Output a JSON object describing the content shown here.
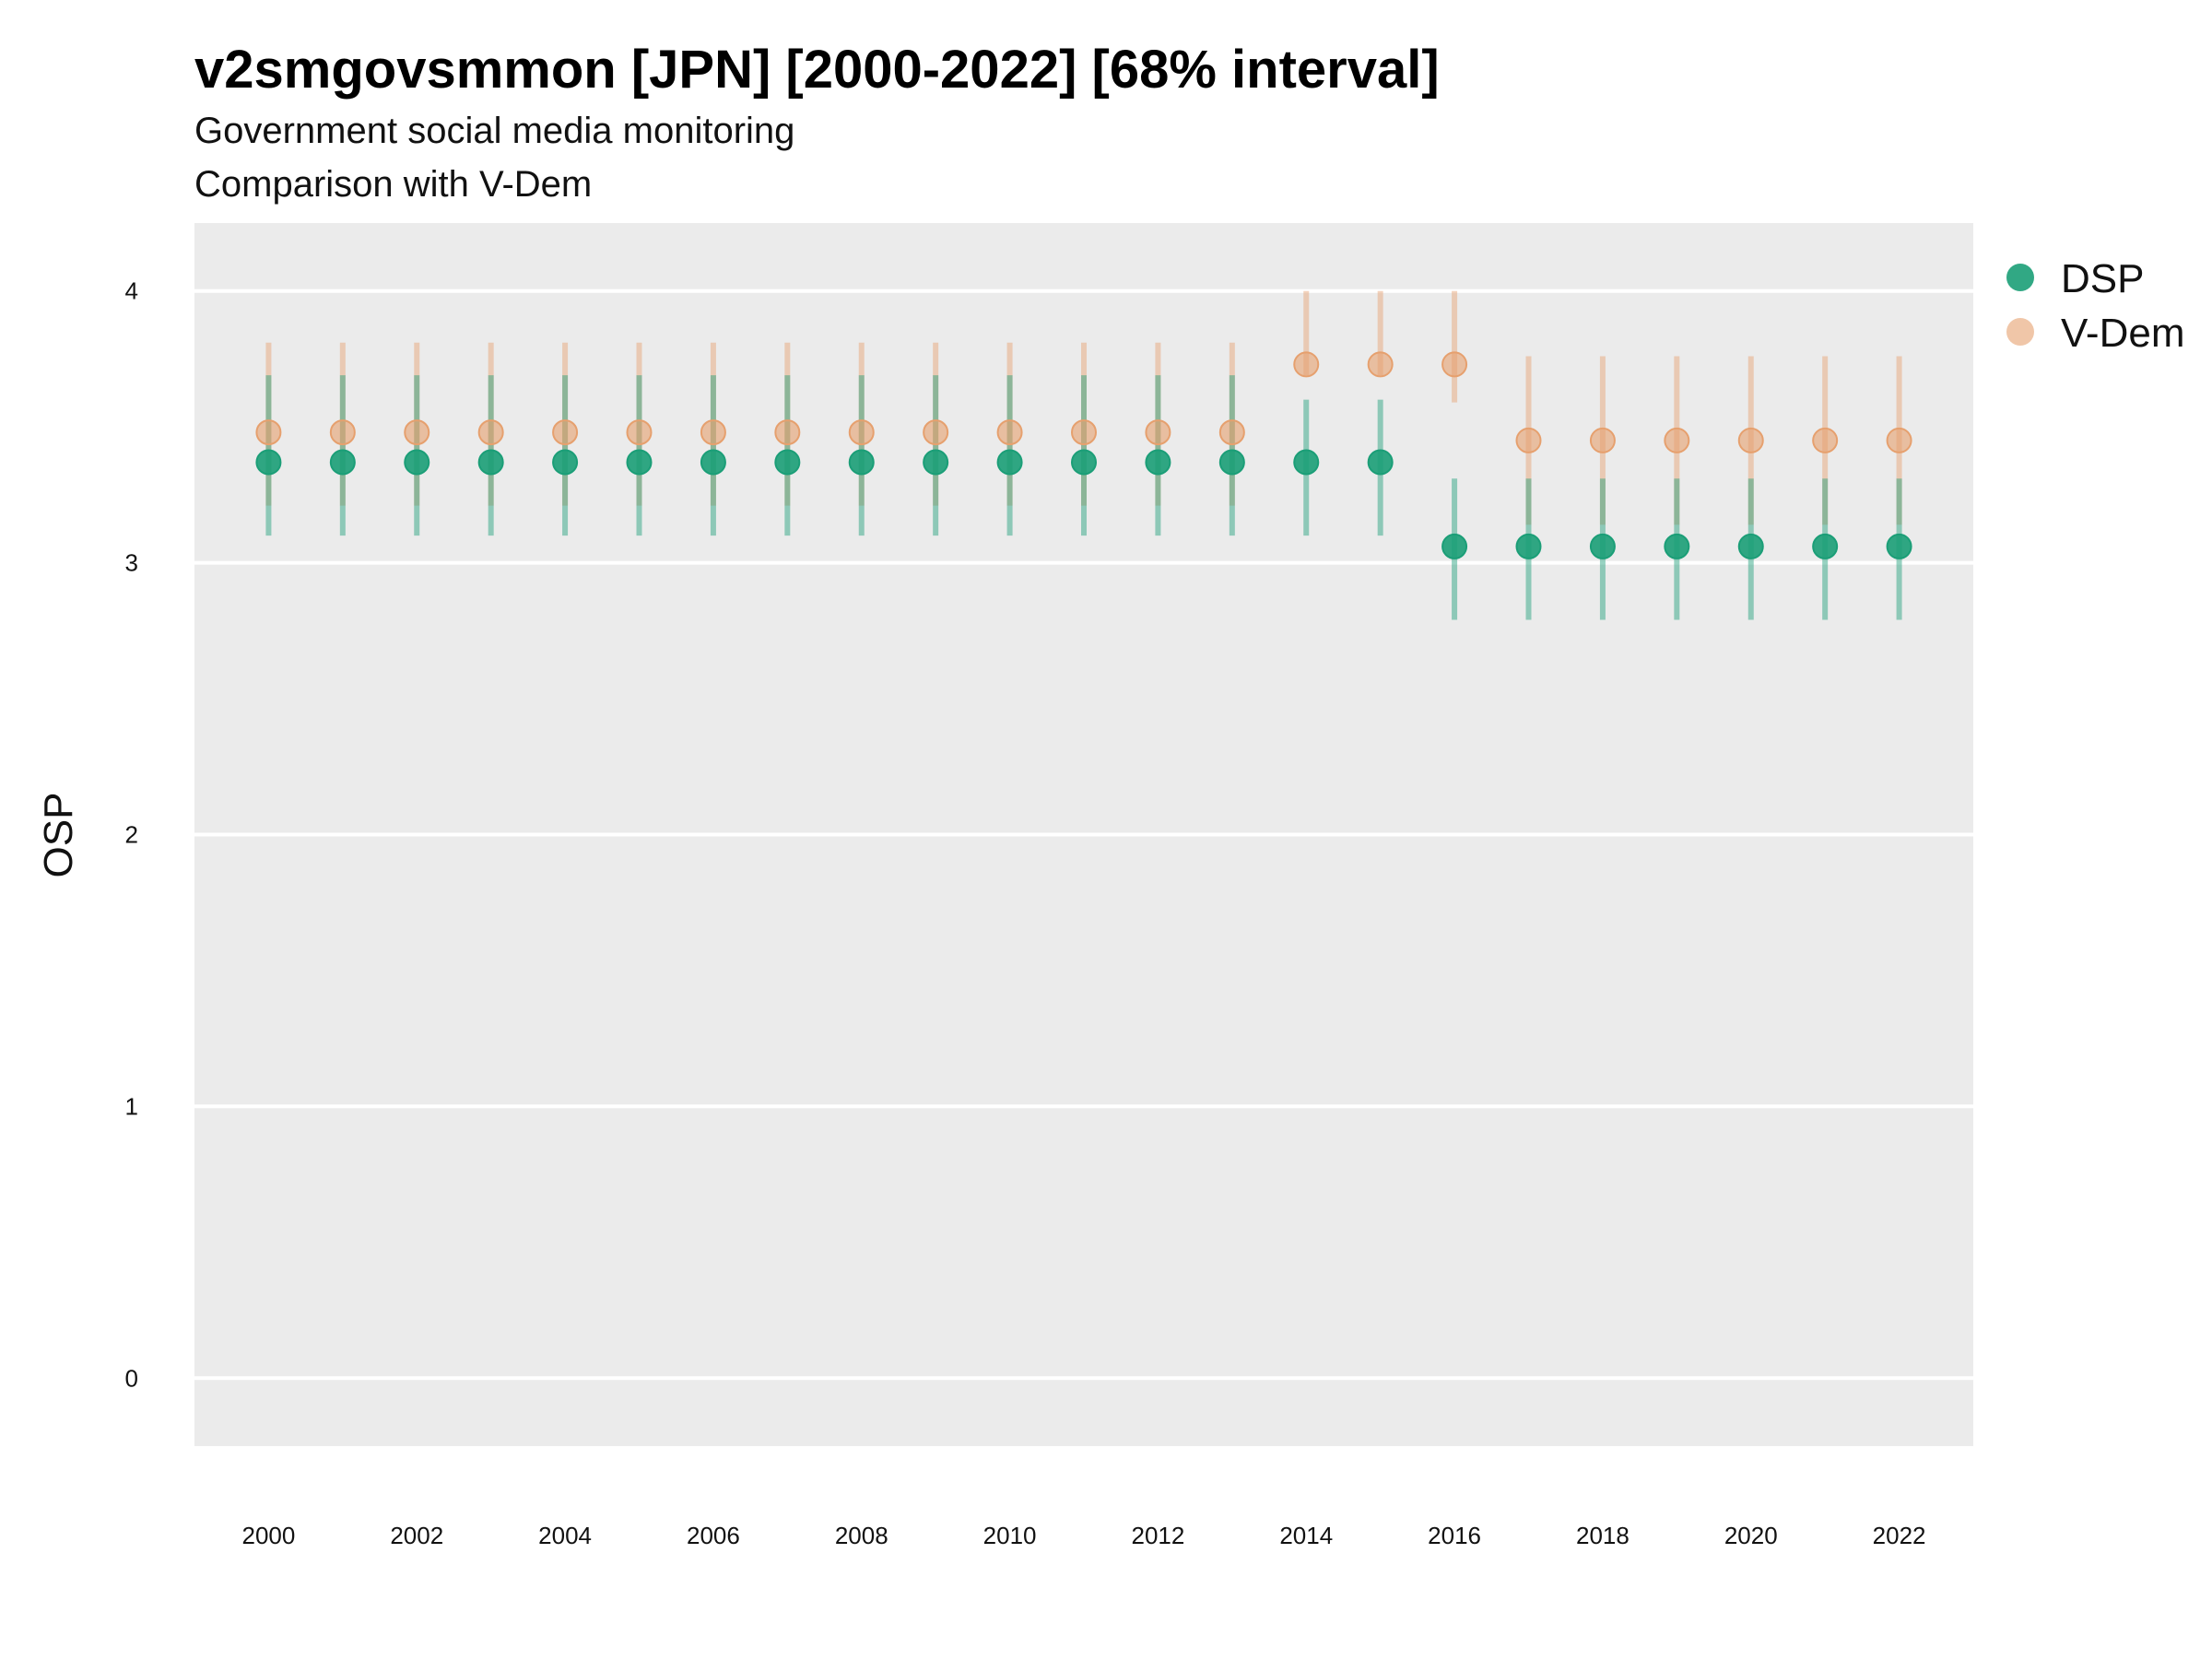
{
  "chart_data": {
    "type": "scatter",
    "title": "v2smgovsmmon [JPN] [2000-2022] [68% interval]",
    "subtitle_lines": [
      "Government social media monitoring",
      "Comparison with V-Dem"
    ],
    "xlabel": "",
    "ylabel": "OSP",
    "x_ticks": [
      "2000",
      "2002",
      "2004",
      "2006",
      "2008",
      "2010",
      "2012",
      "2014",
      "2016",
      "2018",
      "2020",
      "2022"
    ],
    "y_ticks": [
      "0",
      "1",
      "2",
      "3",
      "4"
    ],
    "ylim": [
      -0.25,
      4.25
    ],
    "xlim": [
      1999,
      2023
    ],
    "grid": true,
    "legend_position": "right",
    "colors": {
      "DSP": "#1b9e77",
      "V-Dem": "#e6a06e",
      "panel": "#ebebeb",
      "grid": "#ffffff"
    },
    "x": [
      2000,
      2001,
      2002,
      2003,
      2004,
      2005,
      2006,
      2007,
      2008,
      2009,
      2010,
      2011,
      2012,
      2013,
      2014,
      2015,
      2016,
      2017,
      2018,
      2019,
      2020,
      2021,
      2022
    ],
    "series": [
      {
        "name": "DSP",
        "values": [
          3.37,
          3.37,
          3.37,
          3.37,
          3.37,
          3.37,
          3.37,
          3.37,
          3.37,
          3.37,
          3.37,
          3.37,
          3.37,
          3.37,
          3.37,
          3.37,
          3.06,
          3.06,
          3.06,
          3.06,
          3.06,
          3.06,
          3.06
        ],
        "lower": [
          3.1,
          3.1,
          3.1,
          3.1,
          3.1,
          3.1,
          3.1,
          3.1,
          3.1,
          3.1,
          3.1,
          3.1,
          3.1,
          3.1,
          3.1,
          3.1,
          2.79,
          2.79,
          2.79,
          2.79,
          2.79,
          2.79,
          2.79
        ],
        "upper": [
          3.69,
          3.69,
          3.69,
          3.69,
          3.69,
          3.69,
          3.69,
          3.69,
          3.69,
          3.69,
          3.69,
          3.69,
          3.69,
          3.69,
          3.6,
          3.6,
          3.31,
          3.31,
          3.31,
          3.31,
          3.31,
          3.31,
          3.31
        ]
      },
      {
        "name": "V-Dem",
        "values": [
          3.48,
          3.48,
          3.48,
          3.48,
          3.48,
          3.48,
          3.48,
          3.48,
          3.48,
          3.48,
          3.48,
          3.48,
          3.48,
          3.48,
          3.73,
          3.73,
          3.73,
          3.45,
          3.45,
          3.45,
          3.45,
          3.45,
          3.45
        ],
        "lower": [
          3.21,
          3.21,
          3.21,
          3.21,
          3.21,
          3.21,
          3.21,
          3.21,
          3.21,
          3.21,
          3.21,
          3.21,
          3.21,
          3.21,
          3.69,
          3.69,
          3.59,
          3.14,
          3.14,
          3.14,
          3.14,
          3.14,
          3.14
        ],
        "upper": [
          3.81,
          3.81,
          3.81,
          3.81,
          3.81,
          3.81,
          3.81,
          3.81,
          3.81,
          3.81,
          3.81,
          3.81,
          3.81,
          3.81,
          4.0,
          4.0,
          4.0,
          3.76,
          3.76,
          3.76,
          3.76,
          3.76,
          3.76
        ]
      }
    ]
  }
}
